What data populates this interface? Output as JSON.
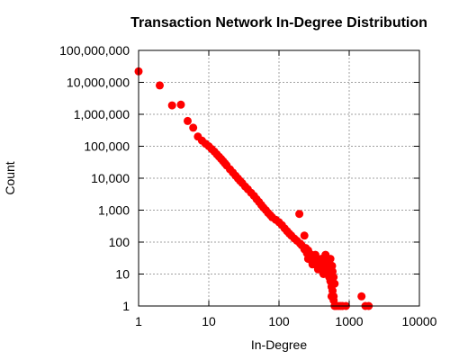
{
  "chart_data": {
    "type": "scatter",
    "title": "Transaction Network In-Degree Distribution",
    "xlabel": "In-Degree",
    "ylabel": "Count",
    "xscale": "log",
    "yscale": "log",
    "xlim": [
      1,
      10000
    ],
    "ylim": [
      1,
      100000000
    ],
    "grid": true,
    "marker_color": "#ff0000",
    "x_ticks": [
      {
        "value": 1,
        "label": "1"
      },
      {
        "value": 10,
        "label": "10"
      },
      {
        "value": 100,
        "label": "100"
      },
      {
        "value": 1000,
        "label": "1000"
      },
      {
        "value": 10000,
        "label": "10000"
      }
    ],
    "y_ticks": [
      {
        "value": 1,
        "label": "1"
      },
      {
        "value": 10,
        "label": "10"
      },
      {
        "value": 100,
        "label": "100"
      },
      {
        "value": 1000,
        "label": "1,000"
      },
      {
        "value": 10000,
        "label": "10,000"
      },
      {
        "value": 100000,
        "label": "100,000"
      },
      {
        "value": 1000000,
        "label": "1,000,000"
      },
      {
        "value": 10000000,
        "label": "10,000,000"
      },
      {
        "value": 100000000,
        "label": "100,000,000"
      }
    ],
    "points": [
      [
        1,
        22000000
      ],
      [
        2,
        8000000
      ],
      [
        3,
        1900000
      ],
      [
        4,
        2000000
      ],
      [
        5,
        620000
      ],
      [
        6,
        380000
      ],
      [
        7,
        200000
      ],
      [
        8,
        150000
      ],
      [
        9,
        120000
      ],
      [
        10,
        100000
      ],
      [
        11,
        82000
      ],
      [
        12,
        68000
      ],
      [
        13,
        56000
      ],
      [
        14,
        47000
      ],
      [
        15,
        40000
      ],
      [
        16,
        34000
      ],
      [
        17,
        29000
      ],
      [
        18,
        25000
      ],
      [
        20,
        19000
      ],
      [
        22,
        15000
      ],
      [
        24,
        12000
      ],
      [
        26,
        9800
      ],
      [
        28,
        8200
      ],
      [
        30,
        7000
      ],
      [
        33,
        5500
      ],
      [
        36,
        4500
      ],
      [
        40,
        3500
      ],
      [
        44,
        2800
      ],
      [
        48,
        2200
      ],
      [
        52,
        1800
      ],
      [
        56,
        1450
      ],
      [
        60,
        1200
      ],
      [
        65,
        1000
      ],
      [
        70,
        820
      ],
      [
        75,
        700
      ],
      [
        80,
        600
      ],
      [
        90,
        500
      ],
      [
        100,
        420
      ],
      [
        110,
        340
      ],
      [
        120,
        270
      ],
      [
        130,
        220
      ],
      [
        140,
        185
      ],
      [
        150,
        160
      ],
      [
        165,
        130
      ],
      [
        180,
        110
      ],
      [
        195,
        760
      ],
      [
        200,
        90
      ],
      [
        210,
        80
      ],
      [
        230,
        160
      ],
      [
        240,
        65
      ],
      [
        260,
        55
      ],
      [
        280,
        42
      ],
      [
        300,
        36
      ],
      [
        320,
        30
      ],
      [
        340,
        26
      ],
      [
        360,
        22
      ],
      [
        380,
        19
      ],
      [
        400,
        17
      ],
      [
        420,
        15
      ],
      [
        450,
        13
      ],
      [
        480,
        11
      ],
      [
        500,
        10
      ],
      [
        520,
        8
      ],
      [
        540,
        6
      ],
      [
        560,
        4
      ],
      [
        580,
        3
      ],
      [
        600,
        2
      ],
      [
        620,
        1
      ],
      [
        650,
        1
      ],
      [
        700,
        1
      ],
      [
        750,
        1
      ],
      [
        800,
        1
      ],
      [
        900,
        1
      ],
      [
        1500,
        2
      ],
      [
        1700,
        1
      ],
      [
        1900,
        1
      ],
      [
        230,
        60
      ],
      [
        260,
        30
      ],
      [
        300,
        20
      ],
      [
        330,
        40
      ],
      [
        360,
        14
      ],
      [
        400,
        30
      ],
      [
        430,
        10
      ],
      [
        470,
        25
      ],
      [
        520,
        20
      ],
      [
        550,
        15
      ],
      [
        580,
        12
      ],
      [
        600,
        8
      ],
      [
        620,
        5
      ],
      [
        560,
        2
      ],
      [
        600,
        1.5
      ],
      [
        250,
        45
      ],
      [
        280,
        28
      ],
      [
        350,
        18
      ],
      [
        420,
        22
      ],
      [
        460,
        40
      ],
      [
        500,
        15
      ],
      [
        540,
        30
      ],
      [
        570,
        18
      ]
    ]
  }
}
